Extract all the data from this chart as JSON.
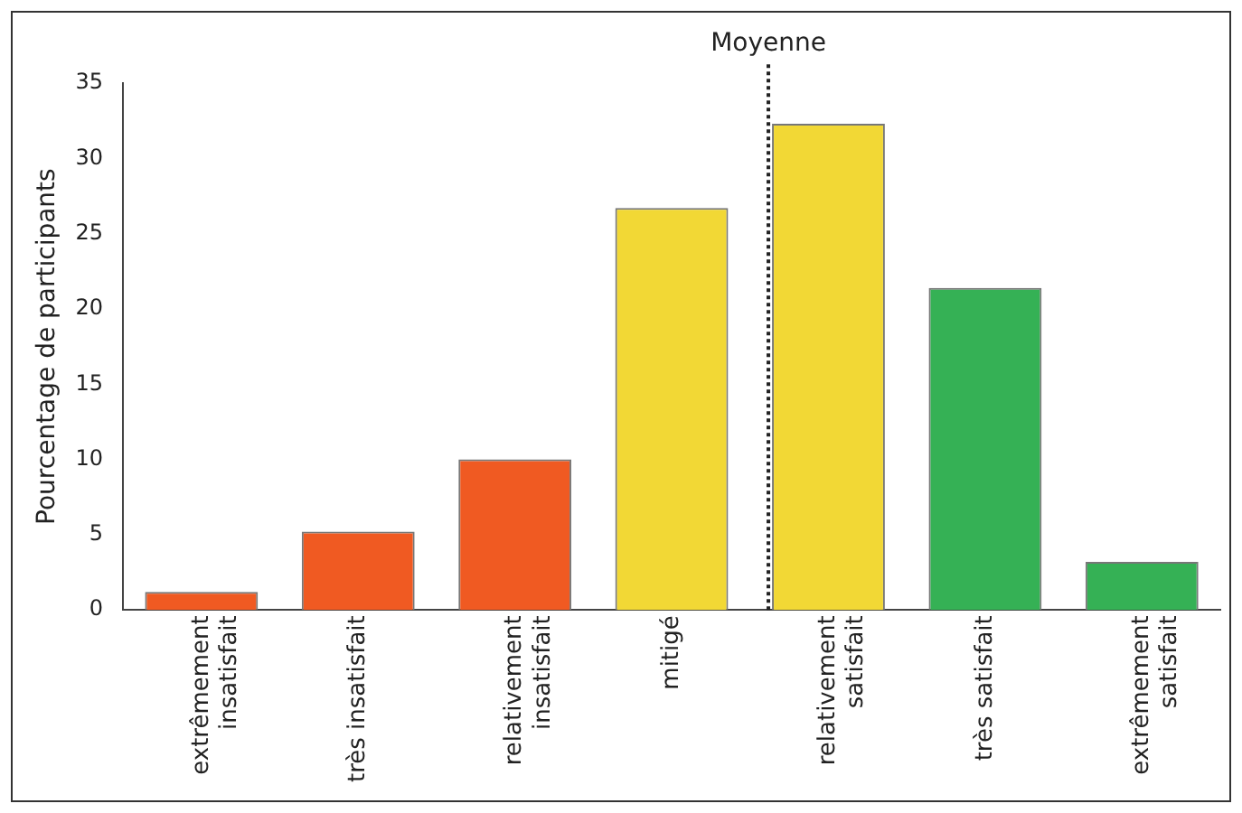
{
  "chart_data": {
    "type": "bar",
    "ylabel": "Pourcentage de participants",
    "categories": [
      "extrêmement\ninsatisfait",
      "très insatisfait",
      "relativement\ninsatisfait",
      "mitigé",
      "relativement\nsatisfait",
      "très satisfait",
      "extrêmement\nsatisfait"
    ],
    "values": [
      1.2,
      5.2,
      10.0,
      26.7,
      32.3,
      21.4,
      3.2
    ],
    "colors": [
      "#f05a22",
      "#f05a22",
      "#f05a22",
      "#f2d835",
      "#f2d835",
      "#35b155",
      "#35b155"
    ],
    "ylim": [
      0,
      35
    ],
    "yticks": [
      0,
      5,
      10,
      15,
      20,
      25,
      30,
      35
    ],
    "grid": false,
    "legend": false,
    "ref_lines": [
      {
        "axis": "x",
        "value": "relativement\nsatisfait",
        "label": "Moyenne",
        "line_style": "dotted",
        "color": "#222222"
      }
    ]
  }
}
